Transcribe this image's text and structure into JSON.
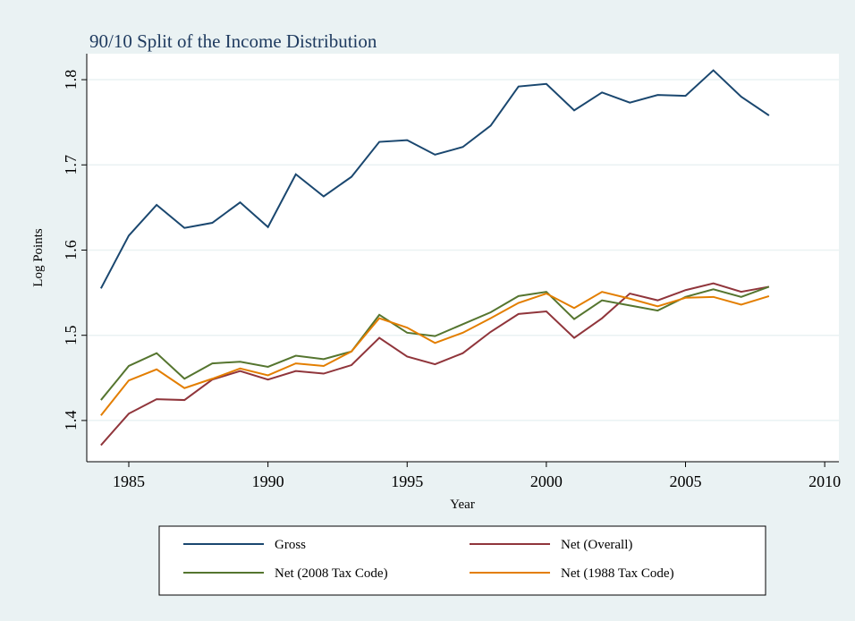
{
  "chart_data": {
    "type": "line",
    "title": "90/10 Split of the Income Distribution",
    "xlabel": "Year",
    "ylabel": "Log Points",
    "x": [
      1984,
      1985,
      1986,
      1987,
      1988,
      1989,
      1990,
      1991,
      1992,
      1993,
      1994,
      1995,
      1996,
      1997,
      1998,
      1999,
      2000,
      2001,
      2002,
      2003,
      2004,
      2005,
      2006,
      2007,
      2008
    ],
    "series": [
      {
        "name": "Gross",
        "color": "#1a476f",
        "values": [
          1.555,
          1.617,
          1.653,
          1.626,
          1.632,
          1.656,
          1.627,
          1.689,
          1.663,
          1.686,
          1.727,
          1.729,
          1.712,
          1.721,
          1.746,
          1.792,
          1.795,
          1.764,
          1.785,
          1.773,
          1.782,
          1.781,
          1.811,
          1.78,
          1.758
        ]
      },
      {
        "name": "Net (Overall)",
        "color": "#90353b",
        "values": [
          1.371,
          1.408,
          1.425,
          1.424,
          1.448,
          1.458,
          1.448,
          1.458,
          1.455,
          1.465,
          1.497,
          1.475,
          1.466,
          1.479,
          1.504,
          1.525,
          1.528,
          1.497,
          1.52,
          1.549,
          1.541,
          1.553,
          1.561,
          1.551,
          1.557
        ]
      },
      {
        "name": "Net (2008 Tax Code)",
        "color": "#55752f",
        "values": [
          1.424,
          1.464,
          1.479,
          1.449,
          1.467,
          1.469,
          1.463,
          1.476,
          1.472,
          1.481,
          1.524,
          1.503,
          1.499,
          1.513,
          1.527,
          1.546,
          1.551,
          1.519,
          1.541,
          1.535,
          1.529,
          1.545,
          1.554,
          1.545,
          1.557
        ]
      },
      {
        "name": "Net (1988 Tax Code)",
        "color": "#e37e00",
        "values": [
          1.406,
          1.447,
          1.46,
          1.438,
          1.449,
          1.461,
          1.453,
          1.467,
          1.464,
          1.481,
          1.52,
          1.509,
          1.491,
          1.503,
          1.52,
          1.538,
          1.549,
          1.532,
          1.551,
          1.543,
          1.534,
          1.544,
          1.545,
          1.536,
          1.546
        ]
      }
    ],
    "xlim": [
      1983.49,
      2010.51
    ],
    "xticks": [
      1985,
      1990,
      1995,
      2000,
      2005,
      2010
    ],
    "ylim": [
      1.3516,
      1.8305
    ],
    "yticks": [
      1.4,
      1.5,
      1.6,
      1.7,
      1.8
    ],
    "grid": true,
    "legend": "bottom"
  }
}
